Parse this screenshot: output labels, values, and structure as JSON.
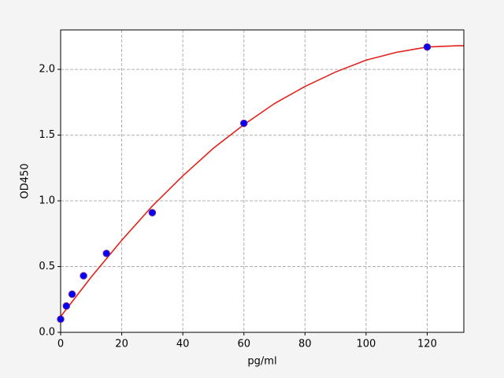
{
  "chart_data": {
    "type": "scatter",
    "x_label": "pg/ml",
    "y_label": "OD450",
    "xlim": [
      0,
      132
    ],
    "ylim": [
      0,
      2.3
    ],
    "xticks": [
      0,
      20,
      40,
      60,
      80,
      100,
      120
    ],
    "yticks": [
      {
        "value": 0,
        "label": "0.0"
      },
      {
        "value": 0.5,
        "label": "0.5"
      },
      {
        "value": 1,
        "label": "1.0"
      },
      {
        "value": 1.5,
        "label": "1.5"
      },
      {
        "value": 2,
        "label": "2.0"
      }
    ],
    "grid": true,
    "series": [
      {
        "mode": "markers",
        "color": "#0000ff",
        "edge_color": "#6a1a8a",
        "x": [
          0,
          1.875,
          3.75,
          7.5,
          15,
          30,
          60,
          120
        ],
        "y": [
          0.1,
          0.2,
          0.29,
          0.43,
          0.6,
          0.91,
          1.59,
          2.17
        ]
      },
      {
        "mode": "line",
        "color": "#e3211c",
        "x": [
          0,
          10,
          20,
          30,
          40,
          50,
          60,
          70,
          80,
          90,
          100,
          110,
          120,
          130,
          132
        ],
        "y": [
          0.12,
          0.42,
          0.7,
          0.96,
          1.19,
          1.4,
          1.58,
          1.74,
          1.87,
          1.98,
          2.07,
          2.13,
          2.17,
          2.18,
          2.18
        ]
      }
    ]
  }
}
